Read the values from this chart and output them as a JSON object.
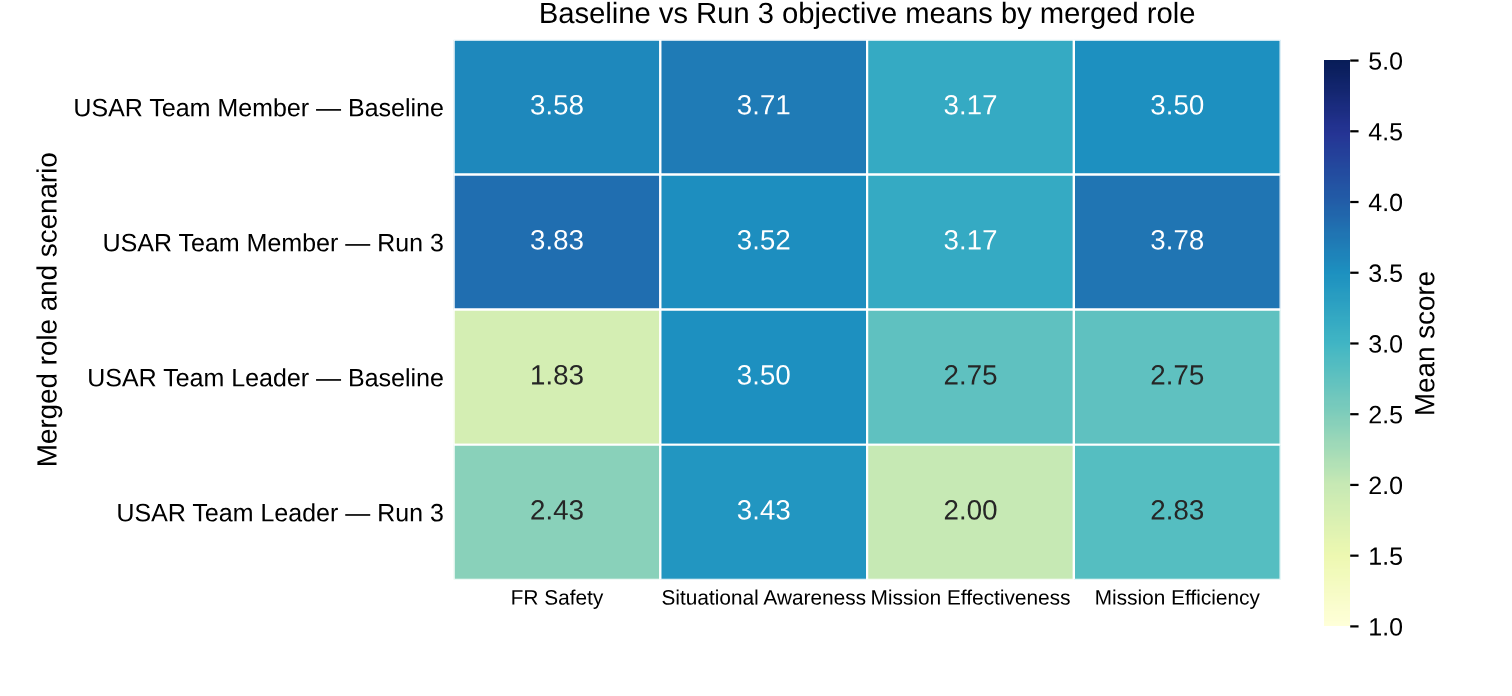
{
  "chart_data": {
    "type": "heatmap",
    "title": "Baseline vs Run 3 objective means by merged role",
    "ylabel": "Merged role and scenario",
    "clabel": "Mean score",
    "categories": [
      "FR Safety",
      "Situational Awareness",
      "Mission Effectiveness",
      "Mission Efficiency"
    ],
    "y_categories": [
      "USAR Team Member — Baseline",
      "USAR Team Member — Run 3",
      "USAR Team Leader — Baseline",
      "USAR Team Leader — Run 3"
    ],
    "cells": [
      [
        3.58,
        3.71,
        3.17,
        3.5
      ],
      [
        3.83,
        3.52,
        3.17,
        3.78
      ],
      [
        1.83,
        3.5,
        2.75,
        2.75
      ],
      [
        2.43,
        3.43,
        2.0,
        2.83
      ]
    ],
    "cell_labels": [
      [
        "3.58",
        "3.71",
        "3.17",
        "3.50"
      ],
      [
        "3.83",
        "3.52",
        "3.17",
        "3.78"
      ],
      [
        "1.83",
        "3.50",
        "2.75",
        "2.75"
      ],
      [
        "2.43",
        "3.43",
        "2.00",
        "2.83"
      ]
    ],
    "clim": [
      1.0,
      5.0
    ],
    "cticks": [
      {
        "value": 1,
        "label": "1.0"
      },
      1.5,
      {
        "value": 2,
        "label": "2.0"
      },
      2.5,
      {
        "value": 3,
        "label": "3.0"
      },
      3.5,
      {
        "value": 4,
        "label": "4.0"
      },
      4.5,
      {
        "value": 5,
        "label": "5.0"
      }
    ]
  }
}
